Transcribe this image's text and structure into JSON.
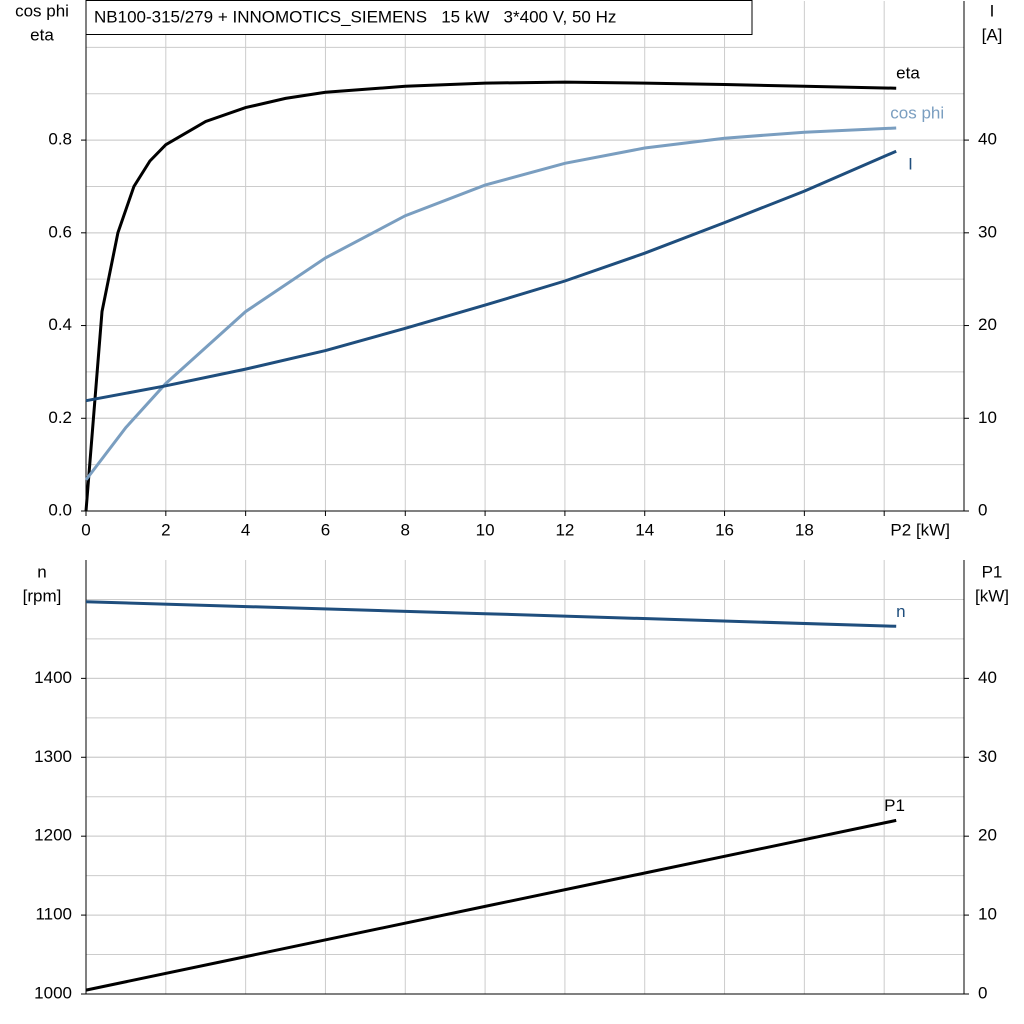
{
  "chart_data": [
    {
      "type": "line",
      "title": "NB100-315/279 + INNOMOTICS_SIEMENS   15 kW   3*400 V, 50 Hz",
      "ylabel": [
        "cos phi",
        "eta"
      ],
      "y2label": [
        "I",
        "[A]"
      ],
      "xlim": [
        0,
        22
      ],
      "xticks": [
        0,
        2,
        4,
        6,
        8,
        10,
        12,
        14,
        16,
        18,
        {
          "value": 20,
          "label": "P2 [kW]"
        }
      ],
      "xtick_labels": true,
      "ylim": [
        0,
        1.1
      ],
      "yticks": [
        {
          "value": 0,
          "label": "0.0"
        },
        0.2,
        0.4,
        0.6,
        0.8
      ],
      "y2lim": [
        0,
        55
      ],
      "y2ticks": [
        0,
        10,
        20,
        30,
        40
      ],
      "grid": true,
      "minor_grid": true,
      "series": [
        {
          "name": "eta",
          "color": "#000000",
          "x": [
            0,
            0.4,
            0.8,
            1.2,
            1.6,
            2,
            3,
            4,
            5,
            6,
            8,
            10,
            12,
            14,
            16,
            18,
            20.3
          ],
          "values": [
            0,
            0.43,
            0.6,
            0.7,
            0.755,
            0.79,
            0.84,
            0.87,
            0.89,
            0.903,
            0.916,
            0.923,
            0.925,
            0.923,
            0.92,
            0.916,
            0.912
          ]
        },
        {
          "name": "cos phi",
          "color": "#7a9ec0",
          "x": [
            0,
            1,
            2,
            4,
            6,
            8,
            10,
            12,
            14,
            16,
            18,
            20.3
          ],
          "values": [
            0.067,
            0.18,
            0.275,
            0.43,
            0.546,
            0.637,
            0.703,
            0.75,
            0.783,
            0.804,
            0.817,
            0.826
          ]
        },
        {
          "name": "I",
          "color": "#1f4e7d",
          "axis": "y2",
          "x": [
            0,
            2,
            4,
            6,
            8,
            10,
            12,
            14,
            16,
            18,
            20.3
          ],
          "values": [
            11.9,
            13.5,
            15.3,
            17.3,
            19.7,
            22.2,
            24.8,
            27.8,
            31.1,
            34.5,
            38.8
          ]
        }
      ]
    },
    {
      "type": "line",
      "ylabel": [
        "n",
        "[rpm]"
      ],
      "y2label": [
        "P1",
        "[kW]"
      ],
      "xlim": [
        0,
        22
      ],
      "xticks": [
        0,
        2,
        4,
        6,
        8,
        10,
        12,
        14,
        16,
        18,
        20
      ],
      "xtick_labels": false,
      "ylim": [
        1000,
        1550
      ],
      "yticks": [
        1000,
        1100,
        1200,
        1300,
        1400
      ],
      "y2lim": [
        0,
        55
      ],
      "y2ticks": [
        0,
        10,
        20,
        30,
        40
      ],
      "grid": true,
      "minor_grid": true,
      "series": [
        {
          "name": "n",
          "color": "#1f4e7d",
          "x": [
            0,
            10,
            20.3
          ],
          "values": [
            1497,
            1482,
            1466
          ]
        },
        {
          "name": "P1",
          "color": "#000000",
          "axis": "y2",
          "x": [
            0,
            10,
            20.3
          ],
          "values": [
            0.5,
            11.1,
            22.0
          ]
        }
      ]
    }
  ]
}
